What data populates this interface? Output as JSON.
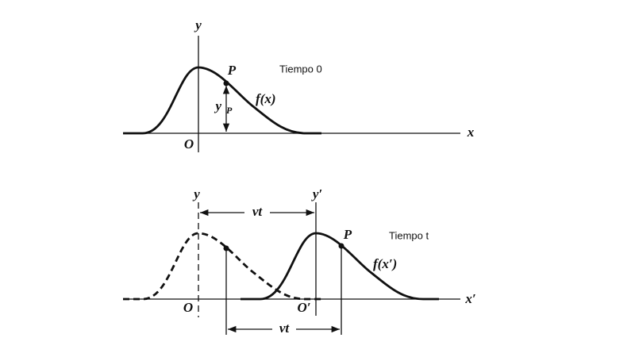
{
  "top": {
    "y_axis": "y",
    "x_axis": "x",
    "origin": "O",
    "point": "P",
    "time_label": "Tiempo 0",
    "function": "f(x)",
    "displacement": "y",
    "displacement_sub": "P"
  },
  "bottom": {
    "y_axis": "y",
    "y_axis_moved": "y′",
    "x_axis": "x′",
    "origin": "O",
    "origin_moved": "O′",
    "point": "P",
    "time_label": "Tiempo t",
    "function": "f(x′)",
    "shift_top": "vt",
    "shift_bottom": "vt"
  }
}
